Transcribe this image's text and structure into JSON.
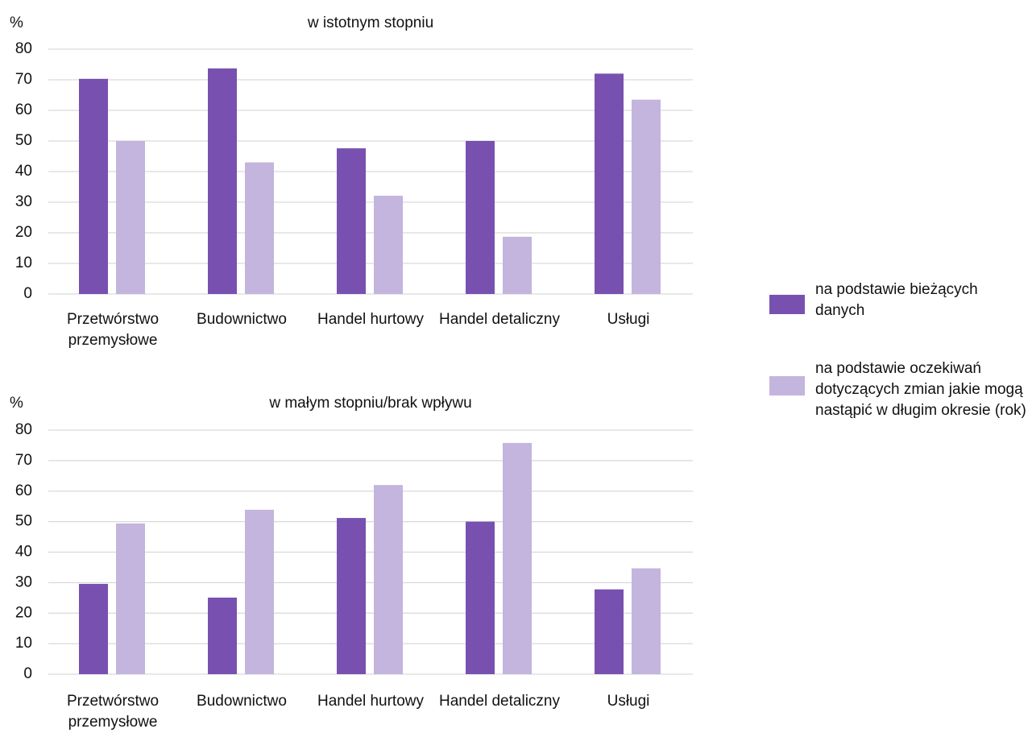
{
  "chart_data": [
    {
      "type": "bar",
      "title": "w istotnym stopniu",
      "y_label": "%",
      "categories": [
        "Przetwórstwo przemysłowe",
        "Budownictwo",
        "Handel hurtowy",
        "Handel detaliczny",
        "Usługi"
      ],
      "series": [
        {
          "name": "na podstawie bieżących danych",
          "color": "#7851b0",
          "values": [
            70.3,
            73.7,
            47.6,
            50,
            72
          ]
        },
        {
          "name": "na podstawie oczekiwań dotyczących zmian jakie mogą nastąpić w długim okresie (rok)",
          "color": "#c3b5dd",
          "values": [
            50,
            43,
            32.1,
            18.7,
            63.5
          ]
        }
      ],
      "ylim": [
        0,
        80
      ],
      "yticks": [
        0,
        10,
        20,
        30,
        40,
        50,
        60,
        70,
        80
      ],
      "grid": true,
      "legend": "right"
    },
    {
      "type": "bar",
      "title": "w małym stopniu/brak wpływu",
      "y_label": "%",
      "categories": [
        "Przetwórstwo przemysłowe",
        "Budownictwo",
        "Handel hurtowy",
        "Handel detaliczny",
        "Usługi"
      ],
      "series": [
        {
          "color": "#7851b0",
          "values": [
            29.6,
            25.1,
            51.2,
            50,
            27.8
          ]
        },
        {
          "color": "#c3b5dd",
          "values": [
            49.4,
            53.9,
            62,
            75.8,
            34.7
          ]
        }
      ],
      "ylim": [
        0,
        80
      ],
      "yticks": [
        0,
        10,
        20,
        30,
        40,
        50,
        60,
        70,
        80
      ],
      "grid": true
    }
  ]
}
